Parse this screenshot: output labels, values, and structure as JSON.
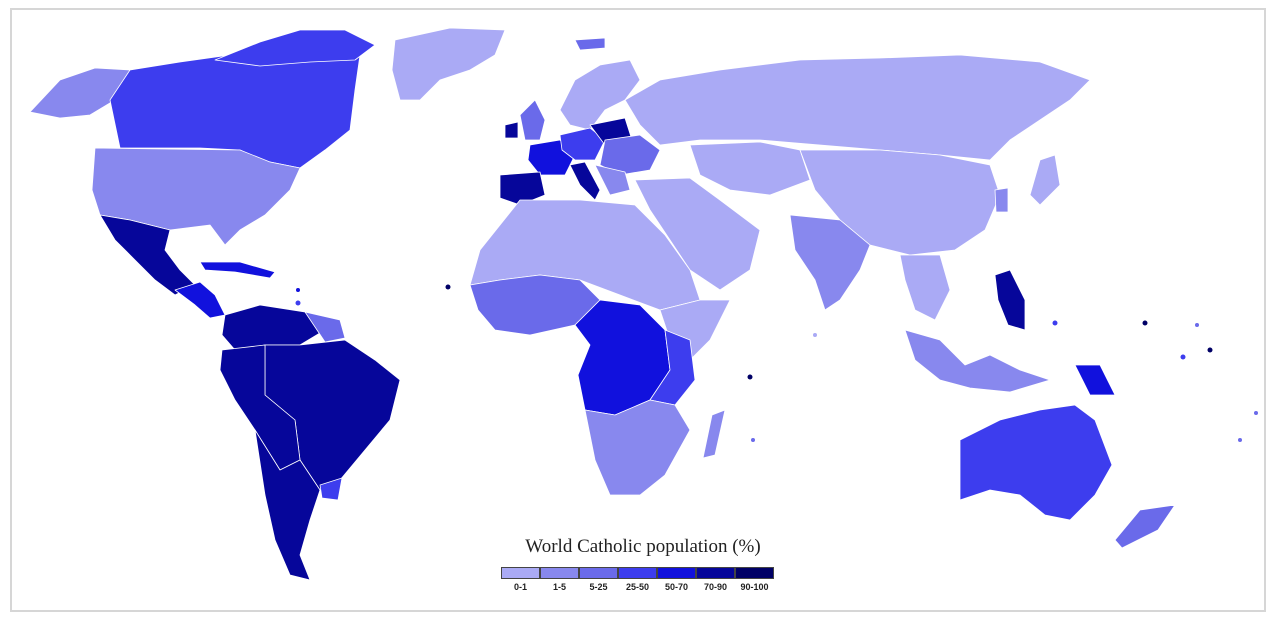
{
  "legend": {
    "title": "World Catholic population (%)",
    "classes": [
      {
        "label": "0-1",
        "color": "#aaaaf5"
      },
      {
        "label": "1-5",
        "color": "#8888ee"
      },
      {
        "label": "5-25",
        "color": "#6a6aea"
      },
      {
        "label": "25-50",
        "color": "#3d3dee"
      },
      {
        "label": "50-70",
        "color": "#1111dd"
      },
      {
        "label": "70-90",
        "color": "#06069a"
      },
      {
        "label": "90-100",
        "color": "#000066"
      }
    ]
  },
  "colors": {
    "ocean": "#ffffff",
    "border": "#d6d6d6",
    "country_outline": "#ffffff"
  }
}
